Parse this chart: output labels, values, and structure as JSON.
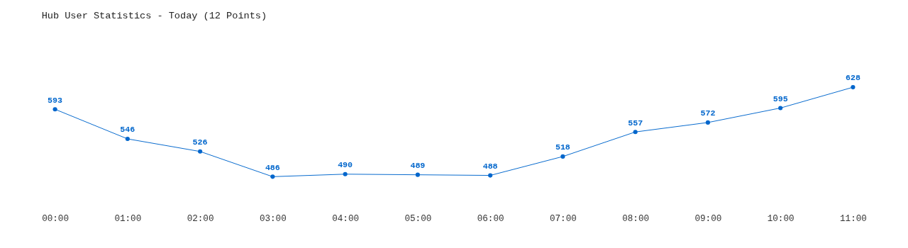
{
  "chart_data": {
    "type": "line",
    "title": "Hub User Statistics - Today (12 Points)",
    "categories": [
      "00:00",
      "01:00",
      "02:00",
      "03:00",
      "04:00",
      "05:00",
      "06:00",
      "07:00",
      "08:00",
      "09:00",
      "10:00",
      "11:00"
    ],
    "series": [
      {
        "color": "#0066cc",
        "values": [
          593,
          546,
          526,
          486,
          490,
          489,
          488,
          518,
          557,
          572,
          595,
          628
        ]
      }
    ],
    "data_labels": true,
    "marker": "circle",
    "grid": false,
    "tick_labels": "x"
  }
}
